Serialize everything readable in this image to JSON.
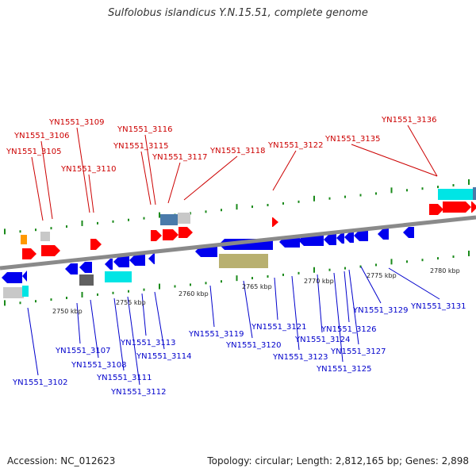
{
  "title": "Sulfolobus islandicus Y.N.15.51, complete genome",
  "footer": {
    "accession": "Accession: NC_012623",
    "summary": "Topology: circular; Length: 2,812,165 bp; Genes: 2,898"
  },
  "colors": {
    "forward_label": "#cc0000",
    "reverse_label": "#0000cc",
    "backbone": "#8a8a8a",
    "tick": "#1a8a1a",
    "gene_red": "#ff0000",
    "gene_blue": "#0000ee",
    "gene_cyan": "#00e5e5",
    "gene_olive": "#b8b070",
    "gene_grey": "#c8c8c8",
    "gene_dark": "#606060",
    "gene_steel": "#4a7aaa",
    "gene_orange": "#ff9900"
  },
  "scale": [
    {
      "label": "2750 kbp"
    },
    {
      "label": "2755 kbp"
    },
    {
      "label": "2760 kbp"
    },
    {
      "label": "2765 kbp"
    },
    {
      "label": "2770 kbp"
    },
    {
      "label": "2775 kbp"
    },
    {
      "label": "2780 kbp"
    }
  ],
  "forward_genes": [
    {
      "label": "YN1551_3105"
    },
    {
      "label": "YN1551_3106"
    },
    {
      "label": "YN1551_3109"
    },
    {
      "label": "YN1551_3110"
    },
    {
      "label": "YN1551_3115"
    },
    {
      "label": "YN1551_3116"
    },
    {
      "label": "YN1551_3117"
    },
    {
      "label": "YN1551_3118"
    },
    {
      "label": "YN1551_3122"
    },
    {
      "label": "YN1551_3135"
    },
    {
      "label": "YN1551_3136"
    }
  ],
  "reverse_genes": [
    {
      "label": "YN1551_3102"
    },
    {
      "label": "YN1551_3107"
    },
    {
      "label": "YN1551_3108"
    },
    {
      "label": "YN1551_3111"
    },
    {
      "label": "YN1551_3112"
    },
    {
      "label": "YN1551_3113"
    },
    {
      "label": "YN1551_3114"
    },
    {
      "label": "YN1551_3119"
    },
    {
      "label": "YN1551_3120"
    },
    {
      "label": "YN1551_3121"
    },
    {
      "label": "YN1551_3123"
    },
    {
      "label": "YN1551_3124"
    },
    {
      "label": "YN1551_3125"
    },
    {
      "label": "YN1551_3126"
    },
    {
      "label": "YN1551_3127"
    },
    {
      "label": "YN1551_3129"
    },
    {
      "label": "YN1551_3131"
    }
  ]
}
